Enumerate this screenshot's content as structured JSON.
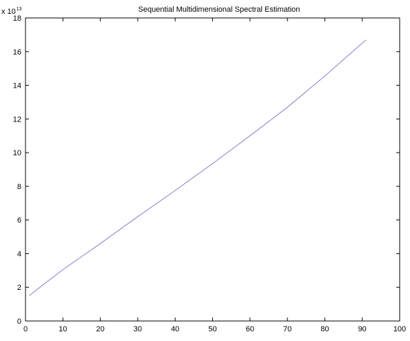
{
  "chart_data": {
    "type": "line",
    "title": "Sequential Multidimensional Spectral Estimation",
    "xlabel": "",
    "ylabel": "",
    "xlim": [
      0,
      100
    ],
    "ylim": [
      0,
      18
    ],
    "x_ticks": [
      0,
      10,
      20,
      30,
      40,
      50,
      60,
      70,
      80,
      90,
      100
    ],
    "y_ticks": [
      0,
      2,
      4,
      6,
      8,
      10,
      12,
      14,
      16,
      18
    ],
    "y_multiplier": {
      "base": "x 10",
      "exponent": "13"
    },
    "grid": false,
    "legend": false,
    "series": [
      {
        "color": "#8080d0",
        "x": [
          1,
          5,
          10,
          20,
          30,
          40,
          50,
          60,
          70,
          80,
          91
        ],
        "y": [
          1.5,
          2.2,
          3.05,
          4.6,
          6.2,
          7.75,
          9.35,
          11.0,
          12.7,
          14.55,
          16.7
        ]
      }
    ]
  }
}
